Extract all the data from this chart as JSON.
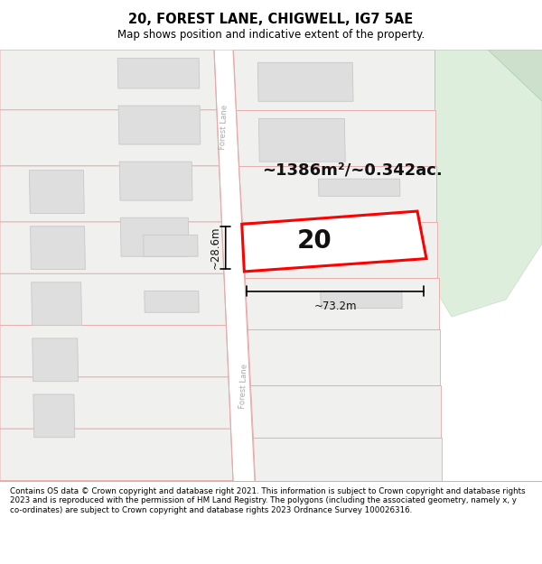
{
  "title": "20, FOREST LANE, CHIGWELL, IG7 5AE",
  "subtitle": "Map shows position and indicative extent of the property.",
  "area_text": "~1386m²/~0.342ac.",
  "label_20": "20",
  "dim_width": "~73.2m",
  "dim_height": "~28.6m",
  "footer": "Contains OS data © Crown copyright and database right 2021. This information is subject to Crown copyright and database rights 2023 and is reproduced with the permission of HM Land Registry. The polygons (including the associated geometry, namely x, y co-ordinates) are subject to Crown copyright and database rights 2023 Ordnance Survey 100026316.",
  "bg_color": "#f7f7f5",
  "map_bg": "#f7f7f5",
  "road_fill": "#ffffff",
  "road_stroke": "#e8a8a8",
  "building_fill": "#dedede",
  "building_stroke": "#c8c8c8",
  "parcel_fill": "#f0f0ee",
  "parcel_stroke": "#e8a8a8",
  "highlight_fill": "#ffffff",
  "highlight_stroke": "#ff0000",
  "green_fill": "#ddeedd",
  "green_stroke": "#c8ddc8",
  "footer_bg": "#ffffff",
  "title_bg": "#ffffff",
  "dim_color": "#111111",
  "text_color": "#111111"
}
